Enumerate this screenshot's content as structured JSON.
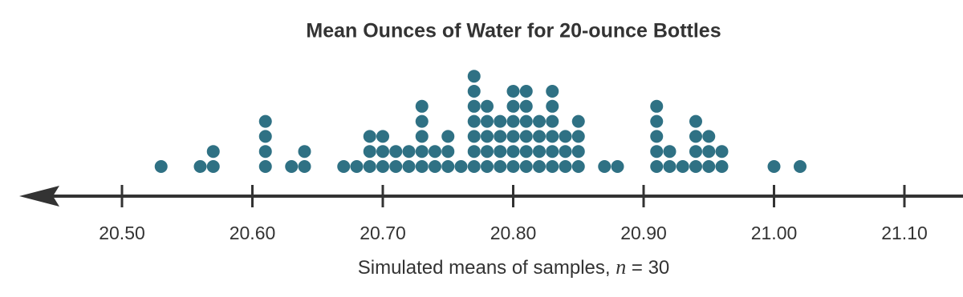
{
  "chart_data": {
    "type": "dot",
    "title": "Mean Ounces of Water for 20-ounce Bottles",
    "x_label": [
      "Simulated means of samples, ",
      "n",
      " = 30"
    ],
    "color": "#2f7184",
    "x": [
      20.53,
      20.56,
      20.57,
      20.61,
      20.63,
      20.64,
      20.67,
      20.68,
      20.69,
      20.7,
      20.71,
      20.72,
      20.73,
      20.74,
      20.75,
      20.76,
      20.77,
      20.78,
      20.79,
      20.8,
      20.81,
      20.82,
      20.83,
      20.84,
      20.85,
      20.87,
      20.88,
      20.91,
      20.92,
      20.93,
      20.94,
      20.95,
      20.96,
      21.0,
      21.02
    ],
    "counts": [
      1,
      1,
      2,
      4,
      1,
      2,
      1,
      1,
      3,
      3,
      2,
      2,
      5,
      2,
      3,
      1,
      7,
      5,
      4,
      6,
      6,
      4,
      6,
      3,
      4,
      1,
      1,
      5,
      2,
      1,
      4,
      3,
      2,
      1,
      1
    ],
    "xlim": [
      20.42,
      21.14
    ],
    "xticks": [
      {
        "value": 20.5,
        "label": "20.50"
      },
      {
        "value": 20.6,
        "label": "20.60"
      },
      {
        "value": 20.7,
        "label": "20.70"
      },
      {
        "value": 20.8,
        "label": "20.80"
      },
      {
        "value": 20.9,
        "label": "20.90"
      },
      {
        "value": 21.0,
        "label": "21.00"
      },
      {
        "value": 21.1,
        "label": "21.10"
      }
    ]
  }
}
